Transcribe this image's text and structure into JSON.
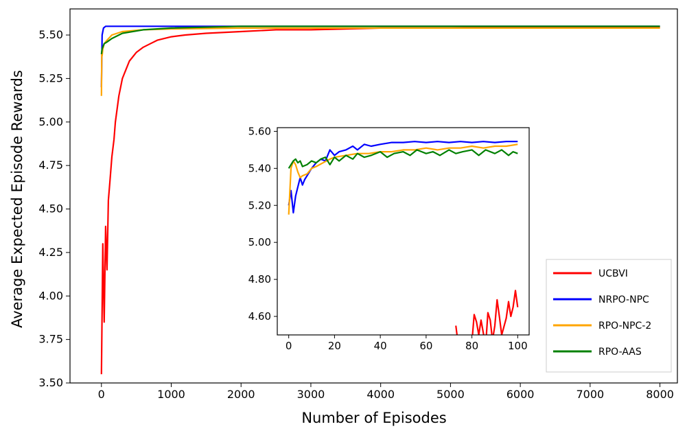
{
  "chart_data": [
    {
      "panel": "main",
      "type": "line",
      "title": "",
      "xlabel": "Number of Episodes",
      "ylabel": "Average Expected Episode Rewards",
      "xlim": [
        -450,
        8250
      ],
      "ylim": [
        3.5,
        5.65
      ],
      "xticks": [
        0,
        1000,
        2000,
        3000,
        4000,
        5000,
        6000,
        7000,
        8000
      ],
      "xtick_labels": [
        "0",
        "1000",
        "2000",
        "3000",
        "4000",
        "5000",
        "6000",
        "7000",
        "8000"
      ],
      "yticks": [
        3.5,
        3.75,
        4.0,
        4.25,
        4.5,
        4.75,
        5.0,
        5.25,
        5.5
      ],
      "ytick_labels": [
        "3.50",
        "3.75",
        "4.00",
        "4.25",
        "4.50",
        "4.75",
        "5.00",
        "5.25",
        "5.50"
      ],
      "grid": false,
      "series": [
        {
          "name": "UCBVI",
          "color": "#ff0000",
          "x": [
            0,
            20,
            40,
            60,
            80,
            100,
            120,
            150,
            180,
            200,
            250,
            300,
            350,
            400,
            500,
            600,
            700,
            800,
            1000,
            1200,
            1500,
            2000,
            2500,
            3000,
            4000,
            5000,
            6000,
            7000,
            8000
          ],
          "y": [
            3.55,
            4.3,
            3.85,
            4.4,
            4.15,
            4.55,
            4.65,
            4.8,
            4.9,
            5.0,
            5.15,
            5.25,
            5.3,
            5.35,
            5.4,
            5.43,
            5.45,
            5.47,
            5.49,
            5.5,
            5.51,
            5.52,
            5.53,
            5.53,
            5.54,
            5.54,
            5.545,
            5.545,
            5.545
          ]
        },
        {
          "name": "NRPO-NPC",
          "color": "#0000ff",
          "x": [
            0,
            10,
            30,
            60,
            100,
            200,
            400,
            800,
            1500,
            3000,
            5000,
            8000
          ],
          "y": [
            5.2,
            5.5,
            5.54,
            5.55,
            5.55,
            5.55,
            5.55,
            5.55,
            5.55,
            5.55,
            5.55,
            5.55
          ]
        },
        {
          "name": "RPO-NPC-2",
          "color": "#ffa500",
          "x": [
            0,
            5,
            10,
            20,
            40,
            80,
            150,
            300,
            600,
            1000,
            2000,
            4000,
            8000
          ],
          "y": [
            5.15,
            5.4,
            5.38,
            5.42,
            5.45,
            5.47,
            5.5,
            5.52,
            5.53,
            5.535,
            5.54,
            5.54,
            5.54
          ]
        },
        {
          "name": "RPO-AAS",
          "color": "#008000",
          "x": [
            0,
            10,
            20,
            40,
            80,
            150,
            300,
            600,
            1000,
            2000,
            4000,
            8000
          ],
          "y": [
            5.39,
            5.42,
            5.43,
            5.45,
            5.46,
            5.48,
            5.51,
            5.53,
            5.54,
            5.55,
            5.55,
            5.55
          ]
        }
      ]
    },
    {
      "panel": "inset",
      "type": "line",
      "xlim": [
        -5,
        105
      ],
      "ylim": [
        4.5,
        5.62
      ],
      "xticks": [
        0,
        20,
        40,
        60,
        80,
        100
      ],
      "xtick_labels": [
        "0",
        "20",
        "40",
        "60",
        "80",
        "100"
      ],
      "yticks": [
        4.6,
        4.8,
        5.0,
        5.2,
        5.4,
        5.6
      ],
      "ytick_labels": [
        "4.60",
        "4.80",
        "5.00",
        "5.20",
        "5.40",
        "5.60"
      ],
      "series": [
        {
          "name": "UCBVI",
          "color": "#ff0000",
          "x": [
            73,
            74,
            80,
            81,
            82,
            83,
            84,
            86,
            87,
            88,
            89,
            90,
            91,
            92,
            93,
            95,
            96,
            97,
            98,
            99,
            100
          ],
          "y": [
            4.55,
            4.45,
            4.46,
            4.61,
            4.57,
            4.5,
            4.58,
            4.44,
            4.62,
            4.58,
            4.47,
            4.55,
            4.69,
            4.6,
            4.5,
            4.59,
            4.68,
            4.6,
            4.65,
            4.74,
            4.65
          ]
        },
        {
          "name": "NRPO-NPC",
          "color": "#0000ff",
          "x": [
            0,
            1,
            2,
            3,
            4,
            5,
            6,
            7,
            8,
            9,
            10,
            12,
            14,
            16,
            18,
            20,
            22,
            25,
            28,
            30,
            33,
            36,
            40,
            45,
            50,
            55,
            60,
            65,
            70,
            75,
            80,
            85,
            90,
            95,
            100
          ],
          "y": [
            5.2,
            5.28,
            5.16,
            5.25,
            5.3,
            5.35,
            5.31,
            5.34,
            5.36,
            5.38,
            5.4,
            5.43,
            5.45,
            5.44,
            5.5,
            5.47,
            5.49,
            5.5,
            5.52,
            5.5,
            5.53,
            5.52,
            5.53,
            5.54,
            5.54,
            5.545,
            5.54,
            5.545,
            5.54,
            5.545,
            5.54,
            5.545,
            5.54,
            5.545,
            5.545
          ]
        },
        {
          "name": "RPO-NPC-2",
          "color": "#ffa500",
          "x": [
            0,
            1,
            2,
            3,
            4,
            5,
            6,
            8,
            10,
            12,
            15,
            18,
            20,
            25,
            30,
            35,
            40,
            45,
            50,
            55,
            60,
            65,
            70,
            75,
            80,
            85,
            90,
            95,
            100
          ],
          "y": [
            5.15,
            5.4,
            5.44,
            5.42,
            5.38,
            5.35,
            5.36,
            5.37,
            5.4,
            5.41,
            5.43,
            5.45,
            5.46,
            5.47,
            5.48,
            5.48,
            5.49,
            5.49,
            5.5,
            5.5,
            5.51,
            5.5,
            5.51,
            5.51,
            5.52,
            5.51,
            5.52,
            5.52,
            5.53
          ]
        },
        {
          "name": "RPO-AAS",
          "color": "#008000",
          "x": [
            0,
            1,
            2,
            3,
            4,
            5,
            6,
            8,
            10,
            12,
            14,
            16,
            18,
            20,
            22,
            25,
            28,
            30,
            33,
            36,
            40,
            43,
            46,
            50,
            53,
            56,
            60,
            63,
            66,
            70,
            73,
            76,
            80,
            83,
            86,
            90,
            93,
            96,
            98,
            100
          ],
          "y": [
            5.4,
            5.42,
            5.44,
            5.45,
            5.43,
            5.44,
            5.41,
            5.42,
            5.44,
            5.43,
            5.45,
            5.46,
            5.42,
            5.46,
            5.44,
            5.47,
            5.45,
            5.48,
            5.46,
            5.47,
            5.49,
            5.46,
            5.48,
            5.49,
            5.47,
            5.5,
            5.48,
            5.49,
            5.47,
            5.5,
            5.48,
            5.49,
            5.5,
            5.47,
            5.5,
            5.48,
            5.5,
            5.47,
            5.49,
            5.48
          ]
        }
      ]
    }
  ],
  "legend": {
    "placement": "lower-right",
    "entries": [
      {
        "label": "UCBVI",
        "color": "#ff0000"
      },
      {
        "label": "NRPO-NPC",
        "color": "#0000ff"
      },
      {
        "label": "RPO-NPC-2",
        "color": "#ffa500"
      },
      {
        "label": "RPO-AAS",
        "color": "#008000"
      }
    ]
  }
}
